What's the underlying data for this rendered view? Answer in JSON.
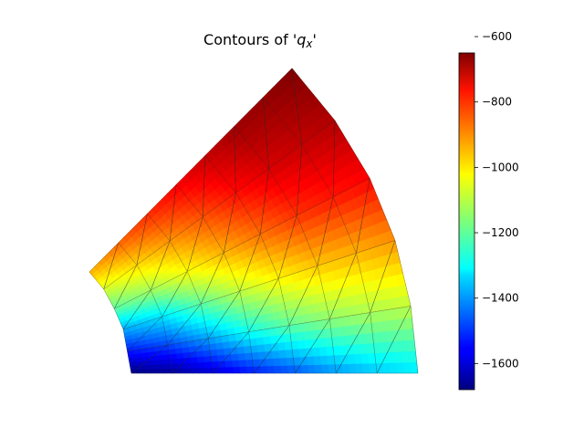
{
  "chart_data": {
    "type": "heatmap",
    "title": {
      "prefix": "Contours of '",
      "var": "q",
      "sub": "x",
      "suffix": "'"
    },
    "colormap": "jet",
    "colorbar": {
      "vmin": -1680,
      "vmax": -650,
      "ticks": [
        -600,
        -800,
        -1000,
        -1200,
        -1400,
        -1600
      ],
      "tick_labels": [
        "−600",
        "−800",
        "−1000",
        "−1200",
        "−1400",
        "−1600"
      ]
    },
    "mesh": {
      "description_free": true,
      "rings": [
        {
          "r": 0,
          "values": [
            -1680,
            -1660,
            -1600,
            -1530,
            -1470,
            -1400,
            -1350,
            -1320
          ]
        },
        {
          "r": 1,
          "values": [
            -1530,
            -1480,
            -1390,
            -1280,
            -1200,
            -1150,
            -1120,
            -1100
          ]
        },
        {
          "r": 2,
          "values": [
            -1380,
            -1320,
            -1200,
            -1100,
            -1030,
            -980,
            -960,
            -930
          ]
        },
        {
          "r": 3,
          "values": [
            -1200,
            -1130,
            -1040,
            -960,
            -890,
            -830,
            -800,
            -780
          ]
        },
        {
          "r": 4,
          "values": [
            -1080,
            -1000,
            -930,
            -860,
            -790,
            -740,
            -720,
            -700
          ]
        },
        {
          "r": 5,
          "values": [
            -960,
            -880,
            -820,
            -770,
            -720,
            -680,
            -670,
            -650
          ]
        }
      ]
    }
  }
}
